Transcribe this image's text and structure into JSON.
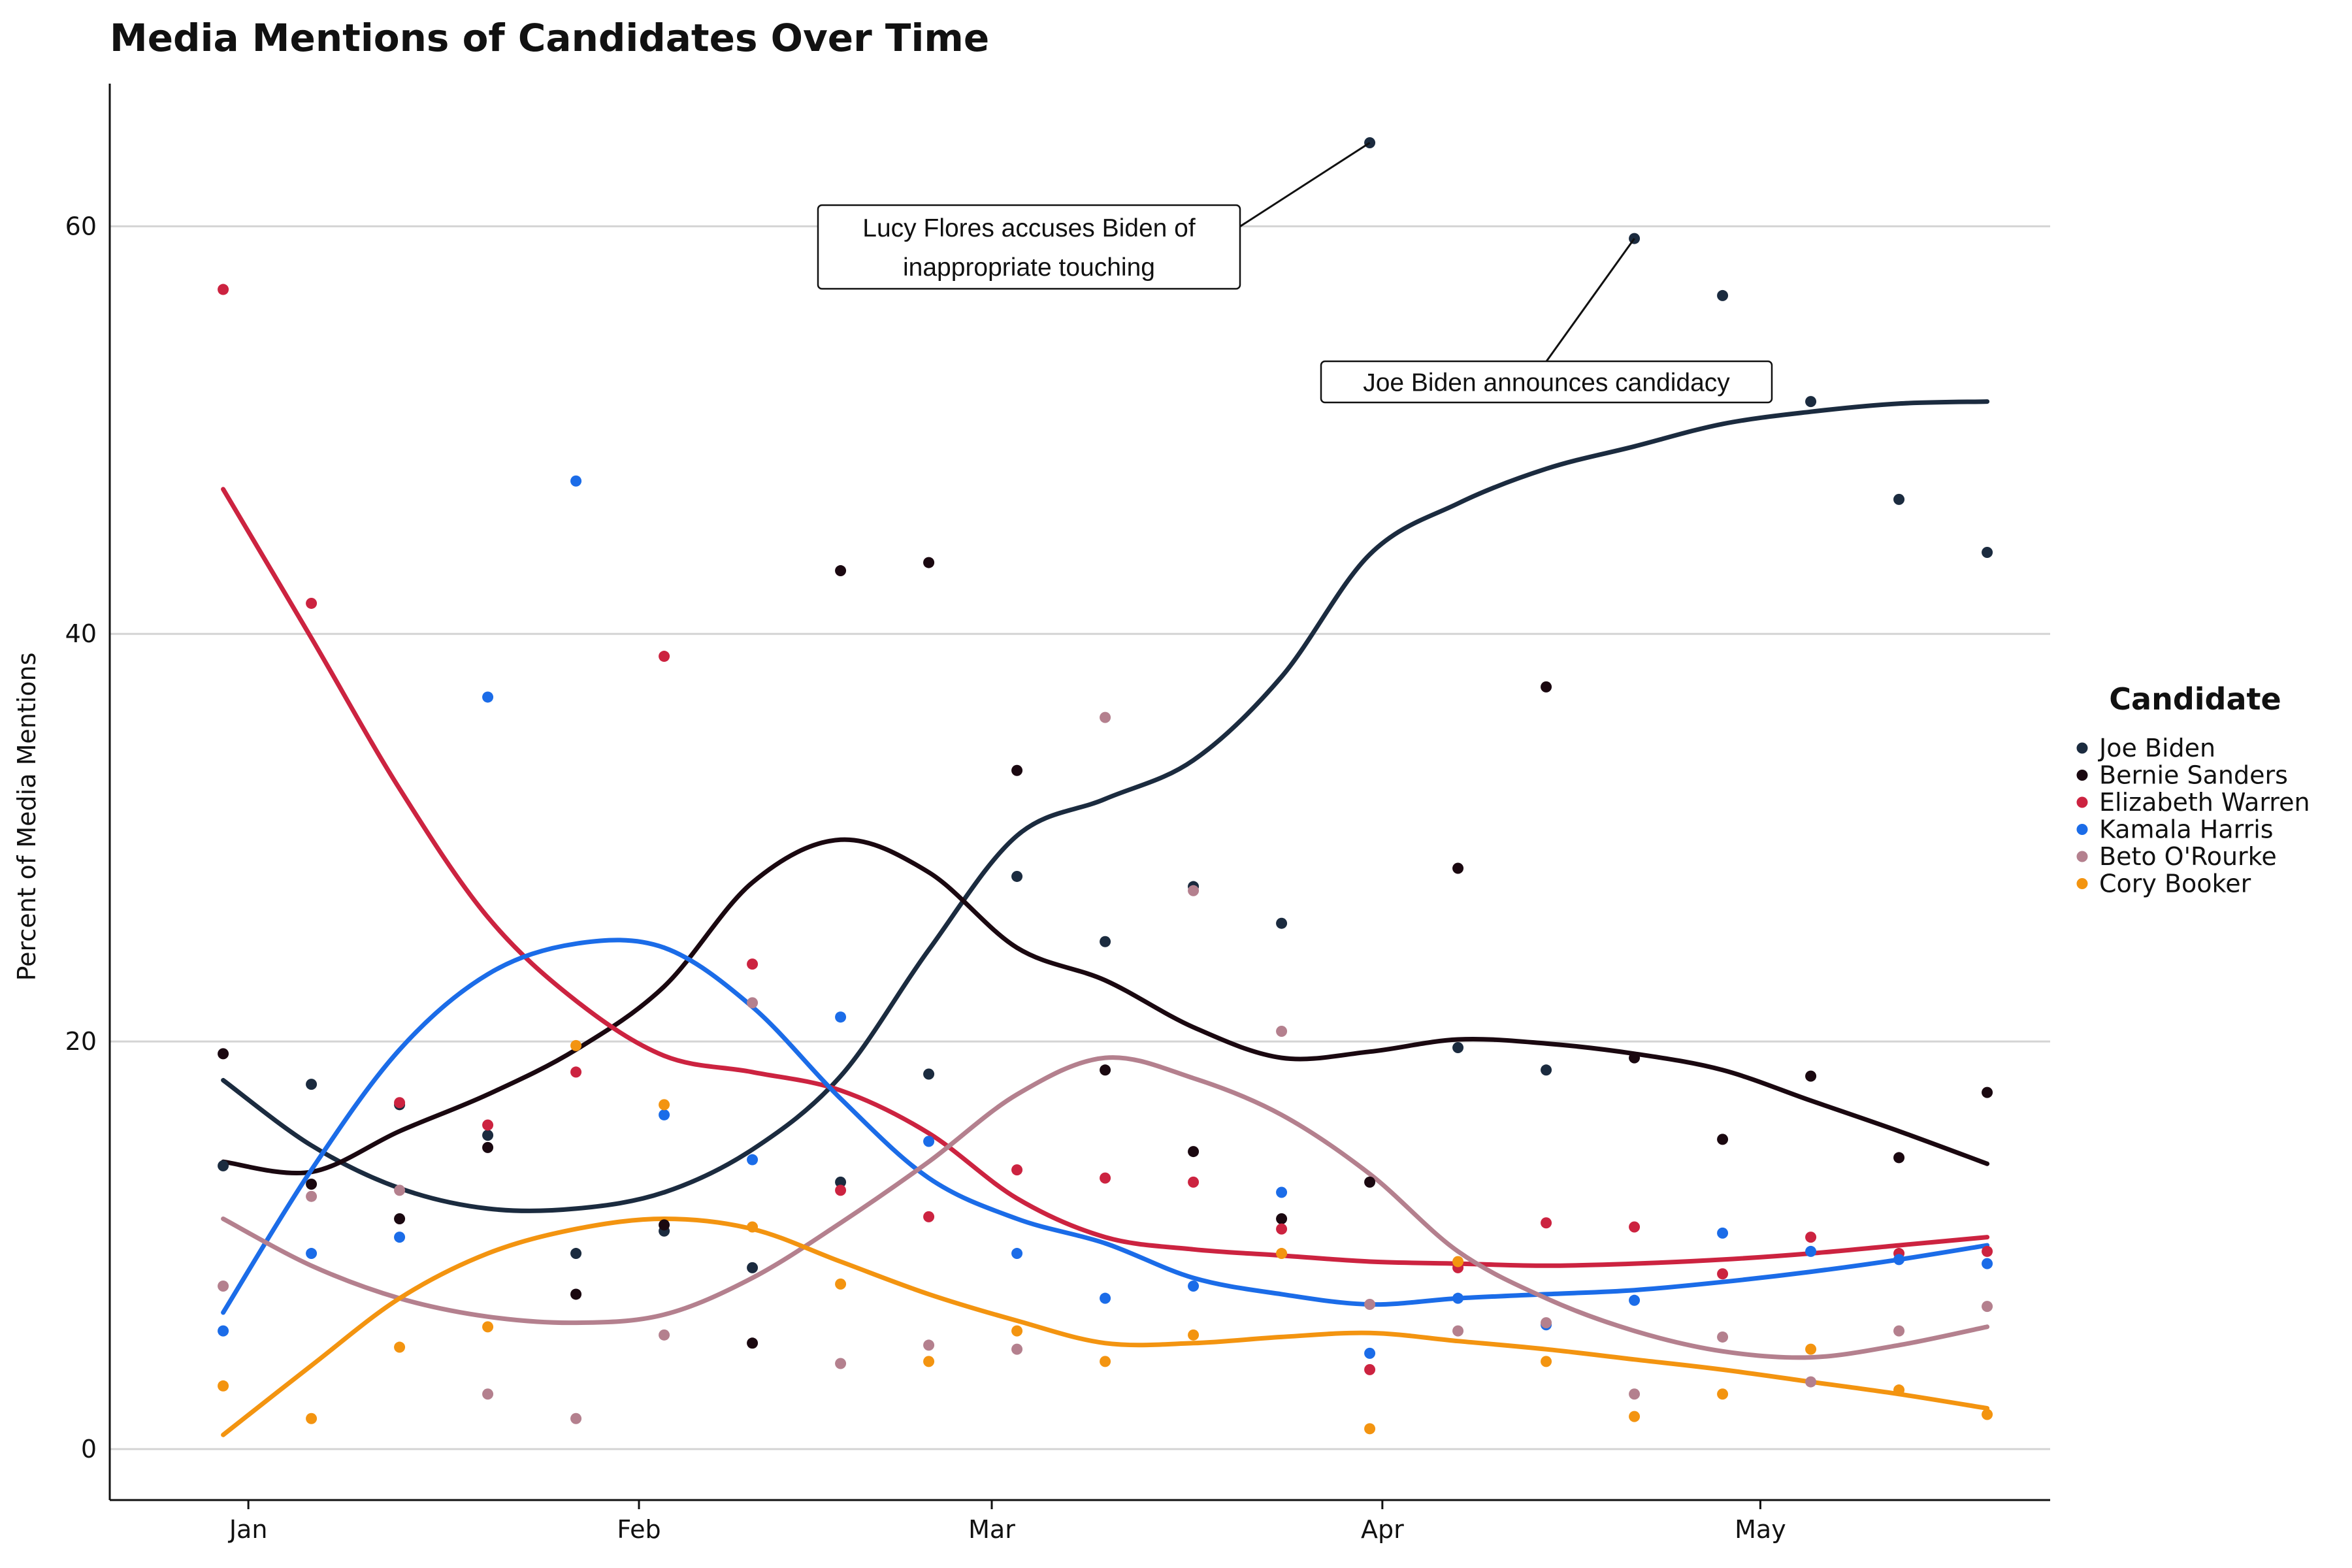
{
  "chart_data": {
    "type": "scatter",
    "title": "Media Mentions of Candidates Over Time",
    "xlabel": "",
    "ylabel": "Percent of Media Mentions",
    "x_tick_labels": [
      {
        "label": "Jan",
        "date": "2019-01-01"
      },
      {
        "label": "Feb",
        "date": "2019-02-01"
      },
      {
        "label": "Mar",
        "date": "2019-03-01"
      },
      {
        "label": "Apr",
        "date": "2019-04-01"
      },
      {
        "label": "May",
        "date": "2019-05-01"
      }
    ],
    "y_ticks": [
      0,
      20,
      40,
      60
    ],
    "xlim": [
      "2018-12-21",
      "2019-05-24"
    ],
    "ylim": [
      -2.5,
      67
    ],
    "grid": "horizontal",
    "legend": {
      "title": "Candidate",
      "position": "right"
    },
    "x": [
      "2018-12-30",
      "2019-01-06",
      "2019-01-13",
      "2019-01-20",
      "2019-01-27",
      "2019-02-03",
      "2019-02-10",
      "2019-02-17",
      "2019-02-24",
      "2019-03-03",
      "2019-03-10",
      "2019-03-17",
      "2019-03-24",
      "2019-03-31",
      "2019-04-07",
      "2019-04-14",
      "2019-04-21",
      "2019-04-28",
      "2019-05-05",
      "2019-05-12",
      "2019-05-19"
    ],
    "series": [
      {
        "name": "Joe Biden",
        "color": "#1b2b3f",
        "values": [
          13.9,
          17.9,
          16.9,
          15.4,
          9.6,
          10.7,
          8.9,
          13.1,
          18.4,
          28.1,
          24.9,
          27.6,
          25.8,
          64.1,
          19.7,
          18.6,
          59.4,
          56.6,
          51.4,
          46.6,
          44.0
        ],
        "smooth": [
          18.1,
          14.9,
          12.8,
          11.8,
          11.8,
          12.6,
          14.7,
          18.3,
          24.5,
          30.1,
          31.9,
          33.8,
          37.9,
          43.9,
          46.4,
          48.1,
          49.2,
          50.3,
          50.9,
          51.3,
          51.4
        ]
      },
      {
        "name": "Bernie Sanders",
        "color": "#1a0810",
        "values": [
          19.4,
          13.0,
          11.3,
          14.8,
          7.6,
          11.0,
          5.2,
          43.1,
          43.5,
          33.3,
          18.6,
          14.6,
          11.3,
          13.1,
          28.5,
          37.4,
          19.2,
          15.2,
          18.3,
          14.3,
          17.5
        ],
        "smooth": [
          14.1,
          13.6,
          15.6,
          17.4,
          19.6,
          22.7,
          27.8,
          29.9,
          28.3,
          24.6,
          23.0,
          20.7,
          19.2,
          19.5,
          20.1,
          19.9,
          19.4,
          18.6,
          17.1,
          15.6,
          14.0
        ]
      },
      {
        "name": "Elizabeth Warren",
        "color": "#cc2340",
        "values": [
          56.9,
          41.5,
          17.0,
          15.9,
          18.5,
          38.9,
          23.8,
          12.7,
          11.4,
          13.7,
          13.3,
          13.1,
          10.8,
          3.9,
          8.9,
          11.1,
          10.9,
          8.6,
          10.4,
          9.6,
          9.7
        ],
        "smooth": [
          47.1,
          39.8,
          32.4,
          26.1,
          22.0,
          19.3,
          18.5,
          17.6,
          15.5,
          12.3,
          10.4,
          9.8,
          9.5,
          9.2,
          9.1,
          9.0,
          9.1,
          9.3,
          9.6,
          10.0,
          10.4
        ]
      },
      {
        "name": "Kamala Harris",
        "color": "#1b6ce8",
        "values": [
          5.8,
          9.6,
          10.4,
          36.9,
          47.5,
          16.4,
          14.2,
          21.2,
          15.1,
          9.6,
          7.4,
          8.0,
          12.6,
          4.7,
          7.4,
          6.1,
          7.3,
          10.6,
          9.7,
          9.3,
          9.1
        ],
        "smooth": [
          6.7,
          13.7,
          19.6,
          23.3,
          24.8,
          24.6,
          21.7,
          17.2,
          13.3,
          11.3,
          10.1,
          8.4,
          7.6,
          7.1,
          7.4,
          7.6,
          7.8,
          8.2,
          8.7,
          9.3,
          10.0
        ]
      },
      {
        "name": "Beto O'Rourke",
        "color": "#b4808e",
        "values": [
          8.0,
          12.4,
          12.7,
          2.7,
          1.5,
          5.6,
          21.9,
          4.2,
          5.1,
          4.9,
          35.9,
          27.4,
          20.5,
          7.1,
          5.8,
          6.2,
          2.7,
          5.5,
          3.3,
          5.8,
          7.0
        ],
        "smooth": [
          11.3,
          9.0,
          7.4,
          6.5,
          6.2,
          6.6,
          8.4,
          11.1,
          14.1,
          17.4,
          19.2,
          18.2,
          16.4,
          13.5,
          9.7,
          7.4,
          5.8,
          4.8,
          4.5,
          5.1,
          6.0
        ]
      },
      {
        "name": "Cory Booker",
        "color": "#f39410",
        "values": [
          3.1,
          1.5,
          5.0,
          6.0,
          19.8,
          16.9,
          10.9,
          8.1,
          4.3,
          5.8,
          4.3,
          5.6,
          9.6,
          1.0,
          9.2,
          4.3,
          1.6,
          2.7,
          4.9,
          2.9,
          1.7
        ],
        "smooth": [
          0.7,
          4.1,
          7.4,
          9.6,
          10.8,
          11.3,
          10.8,
          9.2,
          7.6,
          6.3,
          5.2,
          5.2,
          5.5,
          5.7,
          5.3,
          4.9,
          4.4,
          3.9,
          3.3,
          2.7,
          2.0
        ]
      }
    ],
    "annotations": [
      {
        "lines": [
          "Lucy Flores accuses Biden of",
          "inappropriate touching"
        ],
        "point": {
          "date": "2019-03-31",
          "value": 64.1
        }
      },
      {
        "lines": [
          "Joe Biden announces candidacy"
        ],
        "point": {
          "date": "2019-04-21",
          "value": 59.4
        }
      }
    ]
  }
}
